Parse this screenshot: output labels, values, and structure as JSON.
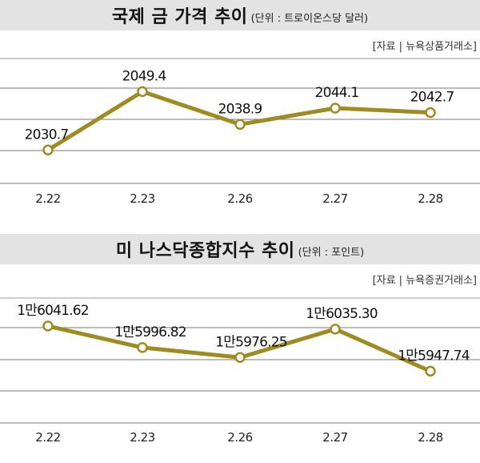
{
  "chart_data": [
    {
      "type": "line",
      "title": "국제 금 가격 추이",
      "unit": "(단위 : 트로이온스당 달러)",
      "source": "[자료 | 뉴욕상품거래소]",
      "categories": [
        "2.22",
        "2.23",
        "2.26",
        "2.27",
        "2.28"
      ],
      "values": [
        2030.7,
        2049.4,
        2038.9,
        2044.1,
        2042.7
      ],
      "labels": [
        "2030.7",
        "2049.4",
        "2038.9",
        "2044.1",
        "2042.7"
      ],
      "ylim": [
        2020,
        2060
      ],
      "grid": true,
      "colors": {
        "line": "#a08a22",
        "title_bg": "#e3e3e3"
      }
    },
    {
      "type": "line",
      "title": "미 나스닥종합지수 추이",
      "unit": "(단위 : 포인트)",
      "source": "[자료 | 뉴욕증권거래소]",
      "categories": [
        "2.22",
        "2.23",
        "2.26",
        "2.27",
        "2.28"
      ],
      "values": [
        16041.62,
        15996.82,
        15976.25,
        16035.3,
        15947.74
      ],
      "labels": [
        "1만6041.62",
        "1만5996.82",
        "1만5976.25",
        "1만6035.30",
        "1만5947.74"
      ],
      "ylim": [
        15840,
        16100
      ],
      "grid": true,
      "colors": {
        "line": "#a08a22",
        "title_bg": "#e3e3e3"
      }
    }
  ]
}
